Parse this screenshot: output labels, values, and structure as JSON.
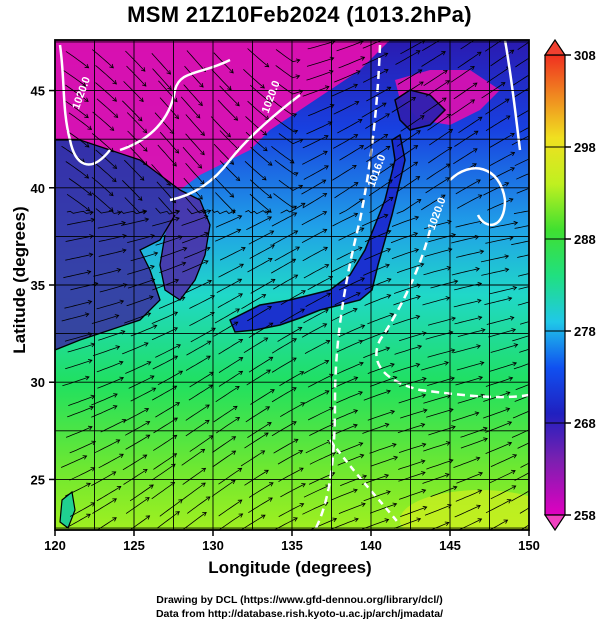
{
  "header": {
    "title": "MSM 21Z10Feb2024 (1013.2hPa)"
  },
  "credits": {
    "line1": "Drawing by DCL (https://www.gfd-dennou.org/library/dcl/)",
    "line2": "Data from http://database.rish.kyoto-u.ac.jp/arch/jmadata/"
  },
  "chart_data": {
    "type": "heatmap",
    "title": "MSM 21Z10Feb2024 (1013.2hPa)",
    "xlabel": "Longitude (degrees)",
    "ylabel": "Latitude  (degrees)",
    "xlim": [
      120,
      150
    ],
    "ylim": [
      22.4,
      47.6
    ],
    "x_ticks": [
      120,
      125,
      130,
      135,
      140,
      145,
      150
    ],
    "y_ticks": [
      25,
      30,
      35,
      40,
      45
    ],
    "x_tick_labels": [
      "120",
      "125",
      "130",
      "135",
      "140",
      "145",
      "150"
    ],
    "y_tick_labels": [
      "25",
      "30",
      "35",
      "40",
      "45"
    ],
    "grid": true,
    "colorbar": {
      "range": [
        258,
        308
      ],
      "ticks": [
        258,
        268,
        278,
        288,
        298,
        308
      ],
      "tick_labels": [
        "258",
        "268",
        "278",
        "288",
        "298",
        "308"
      ],
      "colors": [
        "#e000c0",
        "#3a2aa8",
        "#1030e0",
        "#20d0e0",
        "#20e060",
        "#b0f020",
        "#f0e020",
        "#f08020",
        "#f04020"
      ]
    },
    "contour_labels": [
      {
        "text": "1020.0",
        "lon": 121.5,
        "lat": 44.0
      },
      {
        "text": "1020.0",
        "lon": 133.5,
        "lat": 43.8
      },
      {
        "text": "1016.0",
        "lon": 140.2,
        "lat": 40.0
      },
      {
        "text": "1020.0",
        "lon": 144.0,
        "lat": 37.8
      }
    ]
  },
  "colors": {
    "frame": "#000000",
    "contour": "#ffffff",
    "streamline": "#000000",
    "coast": "#000000"
  }
}
